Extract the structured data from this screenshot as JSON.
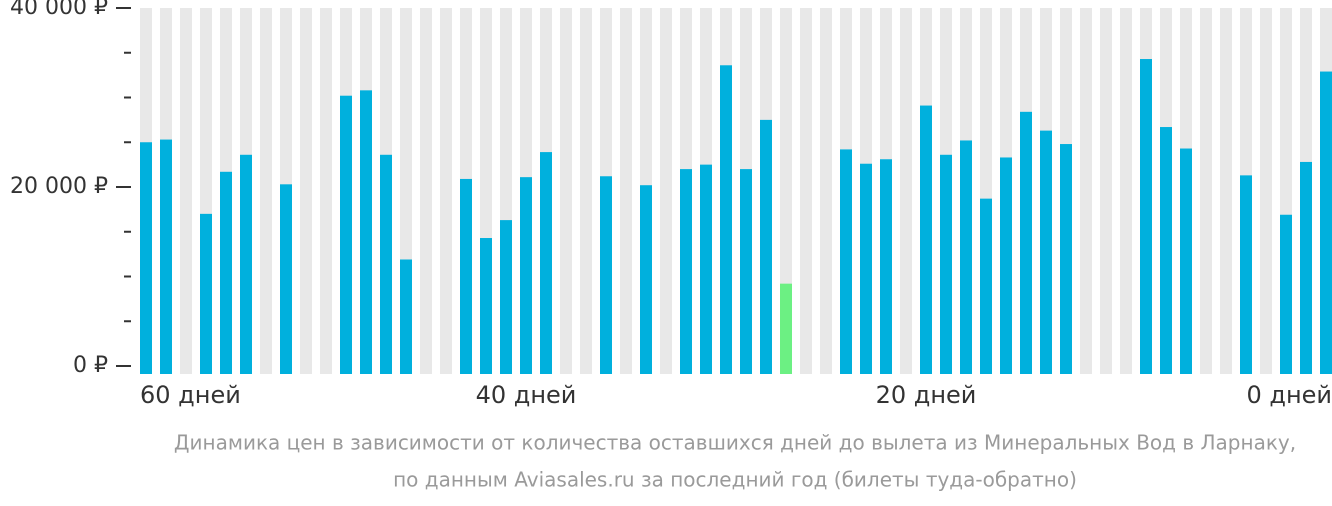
{
  "chart_data": {
    "type": "bar",
    "categories": [
      "60 дней",
      null,
      null,
      null,
      null,
      null,
      null,
      null,
      null,
      null,
      null,
      null,
      null,
      null,
      null,
      null,
      null,
      null,
      null,
      "40 дней",
      null,
      null,
      null,
      null,
      null,
      null,
      null,
      null,
      null,
      null,
      null,
      null,
      null,
      null,
      null,
      null,
      null,
      null,
      null,
      "20 дней",
      null,
      null,
      null,
      null,
      null,
      null,
      null,
      null,
      null,
      null,
      null,
      null,
      null,
      null,
      null,
      null,
      null,
      null,
      null,
      "0 дней"
    ],
    "values": [
      25000,
      25300,
      null,
      17000,
      21700,
      23600,
      null,
      20300,
      null,
      null,
      30200,
      30800,
      23600,
      11900,
      null,
      null,
      20900,
      14300,
      16300,
      21100,
      23900,
      null,
      null,
      21200,
      null,
      20200,
      null,
      22000,
      22500,
      33600,
      22000,
      27500,
      9200,
      null,
      null,
      24200,
      22600,
      23100,
      null,
      29100,
      23600,
      25200,
      18700,
      23300,
      28400,
      26300,
      24800,
      null,
      null,
      null,
      34300,
      26700,
      24300,
      null,
      null,
      21300,
      null,
      16900,
      22800,
      32900
    ],
    "color": "#00b0dd",
    "min_color": "#6cf083",
    "ylim": [
      0,
      40000
    ],
    "yticks": [
      {
        "value": 0,
        "label": "0 ₽"
      },
      {
        "value": 20000,
        "label": "20 000 ₽"
      },
      {
        "value": 40000,
        "label": "40 000 ₽"
      }
    ],
    "minor_yticks": [
      5000,
      10000,
      15000,
      25000,
      30000,
      35000
    ],
    "caption": [
      "Динамика цен в зависимости от количества оставшихся дней до вылета из Минеральных Вод в Ларнаку,",
      "по данным Aviasales.ru за последний год (билеты туда-обратно)"
    ]
  }
}
